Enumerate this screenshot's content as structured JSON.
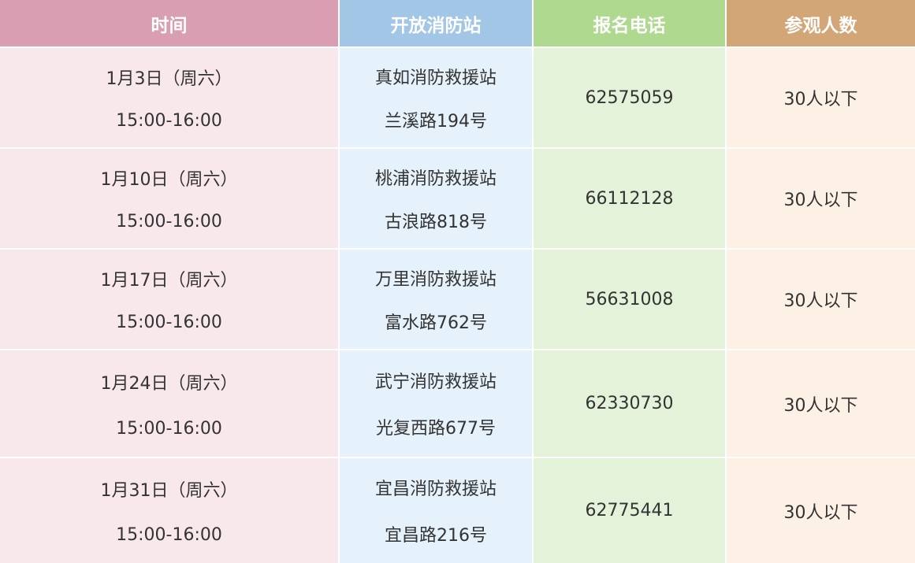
{
  "headers": [
    "时间",
    "开放消防站",
    "报名电话",
    "参观人数"
  ],
  "rows": [
    {
      "date": "1月3日（周六）",
      "time": "15:00-16:00",
      "station": "真如消防救援站",
      "address": "兰溪路194号",
      "phone": "62575059",
      "capacity": "30人以下"
    },
    {
      "date": "1月10日（周六）",
      "time": "15:00-16:00",
      "station": "桃浦消防救援站",
      "address": "古浪路818号",
      "phone": "66112128",
      "capacity": "30人以下"
    },
    {
      "date": "1月17日（周六）",
      "time": "15:00-16:00",
      "station": "万里消防救援站",
      "address": "富水路762号",
      "phone": "56631008",
      "capacity": "30人以下"
    },
    {
      "date": "1月24日（周六）",
      "time": "15:00-16:00",
      "station": "武宁消防救援站",
      "address": "光复西路677号",
      "phone": "62330730",
      "capacity": "30人以下"
    },
    {
      "date": "1月31日（周六）",
      "time": "15:00-16:00",
      "station": "宜昌消防救援站",
      "address": "宜昌路216号",
      "phone": "62775441",
      "capacity": "30人以下"
    }
  ],
  "colors": {
    "header_time": "#d99eb2",
    "header_station": "#a2c6e6",
    "header_phone": "#afd98e",
    "header_capacity": "#d3a677"
  }
}
